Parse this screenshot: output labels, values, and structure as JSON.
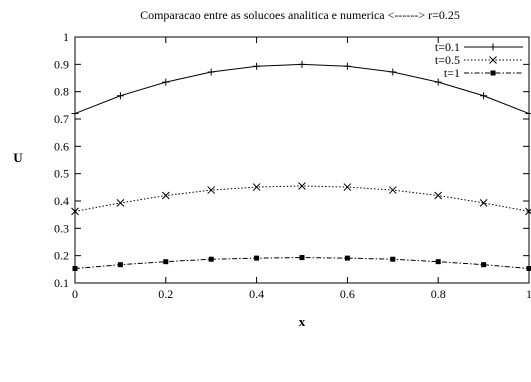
{
  "chart_data": {
    "type": "line",
    "title": "Comparacao entre as solucoes analitica e numerica <------> r=0.25",
    "xlabel": "x",
    "ylabel": "U",
    "xlim": [
      0,
      1
    ],
    "ylim": [
      0.1,
      1
    ],
    "xticks": [
      "0",
      "0.2",
      "0.4",
      "0.6",
      "0.8",
      "1"
    ],
    "yticks": [
      "0.1",
      "0.2",
      "0.3",
      "0.4",
      "0.5",
      "0.6",
      "0.7",
      "0.8",
      "0.9",
      "1"
    ],
    "legend_position": "top-right",
    "grid": false,
    "x": [
      0,
      0.1,
      0.2,
      0.3,
      0.4,
      0.5,
      0.6,
      0.7,
      0.8,
      0.9,
      1
    ],
    "series": [
      {
        "name": "t=0.1",
        "marker": "plus",
        "dash": "solid",
        "values": [
          0.72,
          0.785,
          0.835,
          0.872,
          0.893,
          0.9,
          0.893,
          0.872,
          0.835,
          0.785,
          0.72
        ]
      },
      {
        "name": "t=0.5",
        "marker": "cross",
        "dash": "dotted",
        "values": [
          0.362,
          0.393,
          0.42,
          0.44,
          0.451,
          0.455,
          0.451,
          0.44,
          0.42,
          0.393,
          0.362
        ]
      },
      {
        "name": "t=1",
        "marker": "square",
        "dash": "dashdot",
        "values": [
          0.153,
          0.167,
          0.178,
          0.187,
          0.191,
          0.193,
          0.191,
          0.187,
          0.178,
          0.167,
          0.153
        ]
      }
    ]
  }
}
